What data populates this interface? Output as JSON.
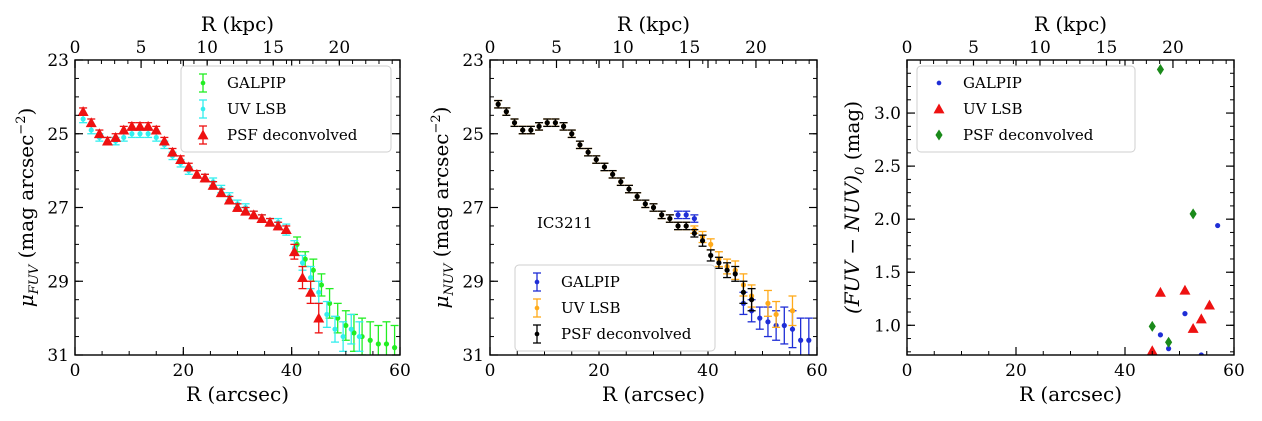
{
  "colors": {
    "galpip_fuv": "#22ee22",
    "uvlsb_fuv": "#33eeee",
    "psf": "#ee1111",
    "galpip_nuv": "#1f2ed6",
    "uvlsb_nuv": "#ffaa1a",
    "psf_nuv": "#000000",
    "color_galpip": "#1f2ed6",
    "color_uvlsb": "#ee1111",
    "color_psf": "#1a8a1a"
  },
  "chart_data": [
    {
      "type": "scatter",
      "xlabel": "R (arcsec)",
      "top_xlabel": "R (kpc)",
      "ylabel_main": "μ",
      "ylabel_sub": "FUV",
      "ylabel_rest": " (mag arcsec",
      "ylabel_sup": "−2",
      "ylabel_end": ")",
      "xlim": [
        0,
        60
      ],
      "ylim": [
        31,
        23
      ],
      "yinverted": true,
      "xticks": [
        "0",
        "20",
        "40",
        "60"
      ],
      "yticks": [
        "23",
        "25",
        "27",
        "29",
        "31"
      ],
      "top_ticks": [
        "0",
        "5",
        "10",
        "15",
        "20"
      ],
      "legend": {
        "placement": "top-right",
        "entries": [
          "GALPIP",
          "UV LSB",
          "PSF deconvolved"
        ]
      },
      "series": [
        {
          "name": "GALPIP",
          "marker": "dot",
          "color": "#22ee22",
          "x": [
            41,
            42.5,
            44,
            45.5,
            47,
            48.5,
            50,
            51.5,
            53,
            54.5,
            56,
            57.5,
            59
          ],
          "y": [
            28.0,
            28.4,
            28.7,
            29.1,
            29.6,
            30.0,
            30.2,
            30.4,
            30.5,
            30.6,
            30.7,
            30.7,
            30.8
          ],
          "err": [
            0.2,
            0.2,
            0.3,
            0.3,
            0.4,
            0.4,
            0.4,
            0.5,
            0.5,
            0.5,
            0.5,
            0.6,
            0.6
          ]
        },
        {
          "name": "UV LSB",
          "marker": "dot",
          "color": "#33eeee",
          "x": [
            1.5,
            3,
            4.5,
            6,
            7.5,
            9,
            10.5,
            12,
            13.5,
            15,
            16.5,
            18,
            19.5,
            21,
            22.5,
            24,
            25.5,
            27,
            28.5,
            30,
            31.5,
            33,
            34.5,
            36,
            37.5,
            39,
            40.5,
            42,
            43.5,
            45,
            46.5,
            48,
            49.5,
            51,
            52.5
          ],
          "y": [
            24.6,
            24.9,
            25.1,
            25.2,
            25.2,
            25.1,
            25.0,
            25.0,
            25.0,
            25.1,
            25.3,
            25.6,
            25.8,
            26.0,
            26.1,
            26.2,
            26.3,
            26.5,
            26.7,
            26.9,
            27.0,
            27.2,
            27.3,
            27.4,
            27.4,
            27.6,
            28.1,
            28.5,
            28.9,
            29.3,
            29.9,
            30.3,
            30.5,
            30.3,
            30.5
          ],
          "err": [
            0.1,
            0.1,
            0.1,
            0.1,
            0.1,
            0.1,
            0.1,
            0.1,
            0.1,
            0.1,
            0.1,
            0.1,
            0.1,
            0.1,
            0.1,
            0.1,
            0.1,
            0.1,
            0.1,
            0.1,
            0.1,
            0.1,
            0.1,
            0.1,
            0.1,
            0.15,
            0.2,
            0.2,
            0.3,
            0.3,
            0.35,
            0.35,
            0.4,
            0.4,
            0.4
          ]
        },
        {
          "name": "PSF deconvolved",
          "marker": "triangle",
          "color": "#ee1111",
          "x": [
            1.5,
            3,
            4.5,
            6,
            7.5,
            9,
            10.5,
            12,
            13.5,
            15,
            16.5,
            18,
            19.5,
            21,
            22.5,
            24,
            25.5,
            27,
            28.5,
            30,
            31.5,
            33,
            34.5,
            36,
            37.5,
            39,
            40.5,
            42,
            43.5,
            45
          ],
          "y": [
            24.4,
            24.7,
            25.0,
            25.2,
            25.1,
            24.9,
            24.8,
            24.8,
            24.8,
            24.9,
            25.2,
            25.5,
            25.7,
            25.9,
            26.1,
            26.2,
            26.4,
            26.6,
            26.8,
            27.0,
            27.1,
            27.2,
            27.3,
            27.4,
            27.5,
            27.6,
            28.2,
            28.9,
            29.3,
            30.0
          ],
          "err": [
            0.1,
            0.1,
            0.1,
            0.1,
            0.1,
            0.1,
            0.1,
            0.1,
            0.1,
            0.1,
            0.1,
            0.1,
            0.1,
            0.1,
            0.1,
            0.1,
            0.1,
            0.1,
            0.1,
            0.1,
            0.1,
            0.1,
            0.1,
            0.1,
            0.1,
            0.1,
            0.2,
            0.3,
            0.3,
            0.4
          ]
        }
      ]
    },
    {
      "type": "scatter",
      "xlabel": "R (arcsec)",
      "top_xlabel": "R (kpc)",
      "ylabel_main": "μ",
      "ylabel_sub": "NUV",
      "ylabel_rest": " (mag arcsec",
      "ylabel_sup": "−2",
      "ylabel_end": ")",
      "annotation": "IC3211",
      "xlim": [
        0,
        60
      ],
      "ylim": [
        31,
        23
      ],
      "yinverted": true,
      "xticks": [
        "0",
        "20",
        "40",
        "60"
      ],
      "yticks": [
        "23",
        "25",
        "27",
        "29",
        "31"
      ],
      "top_ticks": [
        "0",
        "5",
        "10",
        "15",
        "20"
      ],
      "legend": {
        "placement": "bottom-right",
        "entries": [
          "GALPIP",
          "UV LSB",
          "PSF deconvolved"
        ]
      },
      "series": [
        {
          "name": "GALPIP",
          "marker": "dot",
          "color": "#1f2ed6",
          "x": [
            34.5,
            36,
            37.5,
            46.5,
            48,
            49.5,
            51,
            52.5,
            54,
            55.5,
            57,
            58.5
          ],
          "y": [
            27.2,
            27.2,
            27.3,
            29.6,
            29.8,
            30.0,
            30.1,
            30.2,
            30.2,
            30.3,
            30.6,
            30.6
          ],
          "err": [
            0.1,
            0.1,
            0.1,
            0.3,
            0.3,
            0.3,
            0.4,
            0.4,
            0.5,
            0.5,
            0.6,
            0.6
          ]
        },
        {
          "name": "UV LSB",
          "marker": "dot",
          "color": "#ffaa1a",
          "x": [
            1.5,
            3,
            4.5,
            6,
            7.5,
            9,
            10.5,
            12,
            13.5,
            15,
            16.5,
            18,
            19.5,
            21,
            22.5,
            24,
            25.5,
            27,
            28.5,
            30,
            31.5,
            33,
            34.5,
            36,
            37.5,
            39,
            40.5,
            42,
            43.5,
            45,
            46.5,
            48,
            51,
            52.5,
            55.5
          ],
          "y": [
            24.2,
            24.4,
            24.7,
            24.9,
            24.9,
            24.8,
            24.7,
            24.7,
            24.8,
            25.0,
            25.3,
            25.5,
            25.7,
            25.9,
            26.1,
            26.3,
            26.5,
            26.7,
            26.9,
            27.0,
            27.2,
            27.3,
            27.5,
            27.5,
            27.6,
            27.8,
            28.0,
            28.4,
            28.6,
            28.7,
            29.1,
            29.4,
            29.6,
            29.9,
            29.8
          ],
          "err": [
            0.1,
            0.1,
            0.1,
            0.1,
            0.1,
            0.1,
            0.1,
            0.1,
            0.1,
            0.1,
            0.1,
            0.1,
            0.1,
            0.1,
            0.1,
            0.1,
            0.1,
            0.1,
            0.1,
            0.1,
            0.1,
            0.1,
            0.1,
            0.1,
            0.1,
            0.15,
            0.15,
            0.2,
            0.2,
            0.25,
            0.3,
            0.3,
            0.35,
            0.35,
            0.4
          ]
        },
        {
          "name": "PSF deconvolved",
          "marker": "dot",
          "color": "#000000",
          "x": [
            1.5,
            3,
            4.5,
            6,
            7.5,
            9,
            10.5,
            12,
            13.5,
            15,
            16.5,
            18,
            19.5,
            21,
            22.5,
            24,
            25.5,
            27,
            28.5,
            30,
            31.5,
            33,
            34.5,
            36,
            37.5,
            39,
            40.5,
            42,
            43.5,
            45,
            46.5,
            48
          ],
          "y": [
            24.2,
            24.4,
            24.7,
            24.9,
            24.9,
            24.8,
            24.7,
            24.7,
            24.8,
            25.0,
            25.3,
            25.5,
            25.7,
            25.9,
            26.1,
            26.3,
            26.5,
            26.7,
            26.9,
            27.0,
            27.2,
            27.3,
            27.5,
            27.5,
            27.7,
            27.9,
            28.3,
            28.5,
            28.7,
            28.8,
            29.3,
            29.5
          ],
          "err": [
            0.1,
            0.1,
            0.1,
            0.1,
            0.1,
            0.1,
            0.1,
            0.1,
            0.1,
            0.1,
            0.1,
            0.1,
            0.1,
            0.1,
            0.1,
            0.1,
            0.1,
            0.1,
            0.1,
            0.1,
            0.1,
            0.1,
            0.1,
            0.1,
            0.1,
            0.15,
            0.15,
            0.15,
            0.2,
            0.2,
            0.3,
            0.3
          ]
        }
      ]
    },
    {
      "type": "scatter",
      "xlabel": "R (arcsec)",
      "top_xlabel": "R (kpc)",
      "ylabel_main": "(FUV − NUV)",
      "ylabel_sub": "0",
      "ylabel_rest": " (mag)",
      "ylabel_sup": "",
      "ylabel_end": "",
      "xlim": [
        0,
        60
      ],
      "ylim": [
        0.72,
        3.5
      ],
      "yinverted": false,
      "xticks": [
        "0",
        "20",
        "40",
        "60"
      ],
      "yticks": [
        "1.0",
        "1.5",
        "2.0",
        "2.5",
        "3.0"
      ],
      "top_ticks": [
        "0",
        "5",
        "10",
        "15",
        "20"
      ],
      "legend": {
        "placement": "top-left",
        "entries": [
          "GALPIP",
          "UV LSB",
          "PSF deconvolved"
        ]
      },
      "series": [
        {
          "name": "GALPIP",
          "marker": "dot",
          "color": "#1f2ed6",
          "x": [
            46.5,
            48,
            51,
            54,
            57
          ],
          "y": [
            0.91,
            0.78,
            1.11,
            0.72,
            1.94
          ]
        },
        {
          "name": "UV LSB",
          "marker": "triangle",
          "color": "#ee1111",
          "x": [
            45,
            46.5,
            51,
            52.5,
            54,
            55.5
          ],
          "y": [
            0.76,
            1.31,
            1.33,
            0.97,
            1.06,
            1.19
          ]
        },
        {
          "name": "PSF deconvolved",
          "marker": "diamond",
          "color": "#1a8a1a",
          "x": [
            45,
            46.5,
            48,
            52.5
          ],
          "y": [
            0.99,
            3.41,
            0.84,
            2.05
          ]
        }
      ]
    }
  ]
}
